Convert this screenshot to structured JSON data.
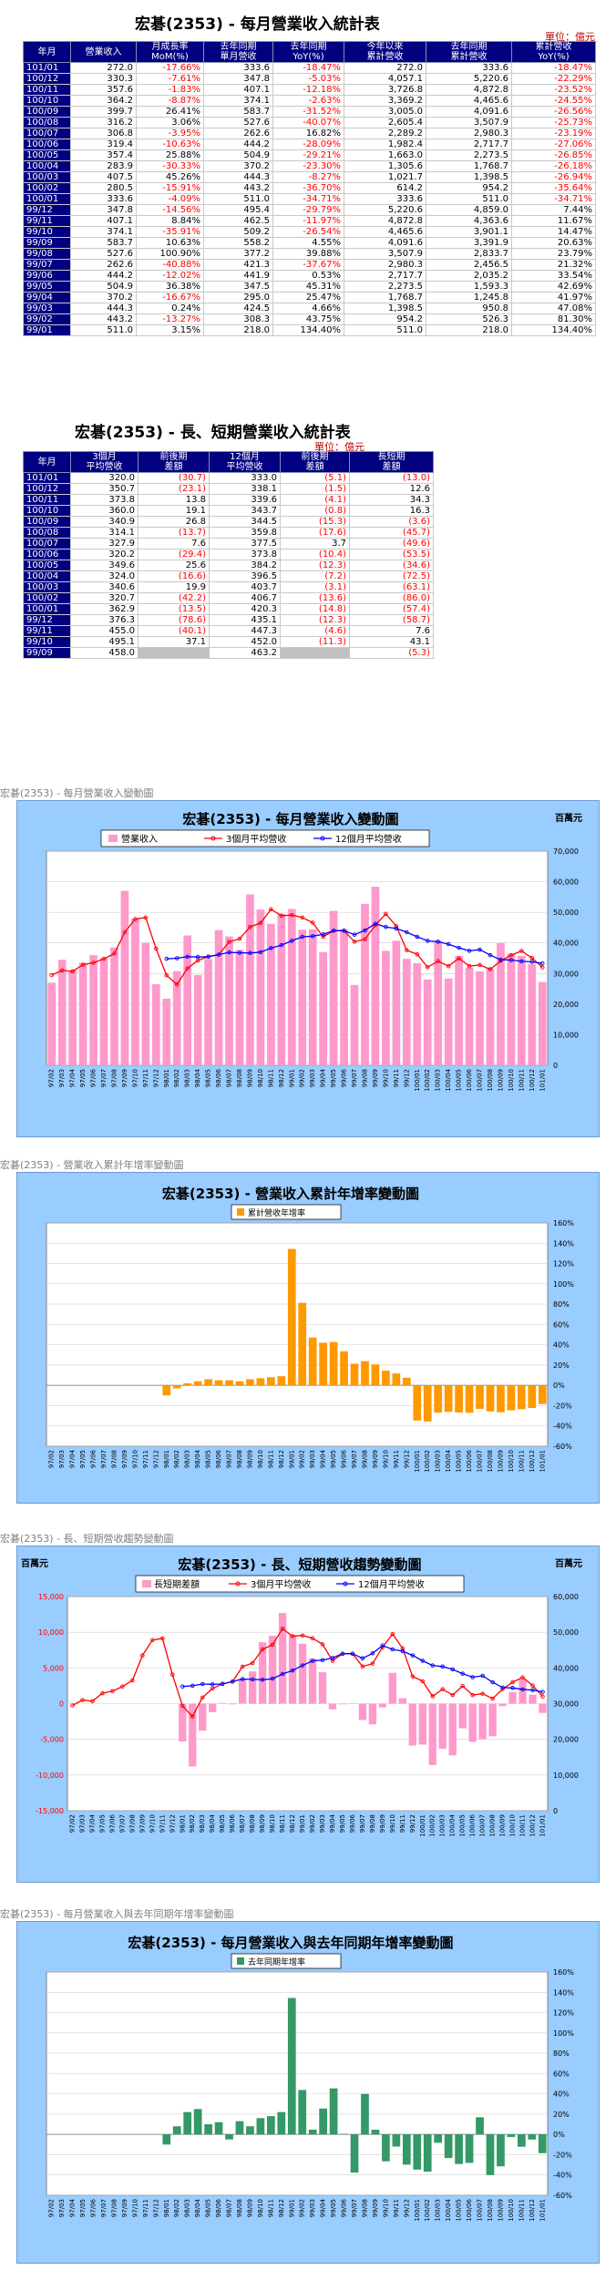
{
  "colors": {
    "header_bg": "#000080",
    "negative": "#ff0000",
    "panel_bg": "#99ccff",
    "bar_pink": "#ff99cc",
    "red_line": "#ff0000",
    "blue_line": "#0000ff",
    "orange_bar": "#ff9900",
    "green_bar": "#339966"
  },
  "t1": {
    "title": "宏碁(2353) - 每月營業收入統計表",
    "unit": "單位：億元",
    "headers": [
      "年月",
      "營業收入",
      "月成長率\nMoM(%)",
      "去年同期\n單月營收",
      "去年同期\nYoY(%)",
      "今年以來\n累計營收",
      "去年同期\n累計營收",
      "累計營收\nYoY(%)"
    ],
    "rows": [
      [
        "101/01",
        "272.0",
        "-17.66%",
        "333.6",
        "-18.47%",
        "272.0",
        "333.6",
        "-18.47%"
      ],
      [
        "100/12",
        "330.3",
        "-7.61%",
        "347.8",
        "-5.03%",
        "4,057.1",
        "5,220.6",
        "-22.29%"
      ],
      [
        "100/11",
        "357.6",
        "-1.83%",
        "407.1",
        "-12.18%",
        "3,726.8",
        "4,872.8",
        "-23.52%"
      ],
      [
        "100/10",
        "364.2",
        "-8.87%",
        "374.1",
        "-2.63%",
        "3,369.2",
        "4,465.6",
        "-24.55%"
      ],
      [
        "100/09",
        "399.7",
        "26.41%",
        "583.7",
        "-31.52%",
        "3,005.0",
        "4,091.6",
        "-26.56%"
      ],
      [
        "100/08",
        "316.2",
        "3.06%",
        "527.6",
        "-40.07%",
        "2,605.4",
        "3,507.9",
        "-25.73%"
      ],
      [
        "100/07",
        "306.8",
        "-3.95%",
        "262.6",
        "16.82%",
        "2,289.2",
        "2,980.3",
        "-23.19%"
      ],
      [
        "100/06",
        "319.4",
        "-10.63%",
        "444.2",
        "-28.09%",
        "1,982.4",
        "2,717.7",
        "-27.06%"
      ],
      [
        "100/05",
        "357.4",
        "25.88%",
        "504.9",
        "-29.21%",
        "1,663.0",
        "2,273.5",
        "-26.85%"
      ],
      [
        "100/04",
        "283.9",
        "-30.33%",
        "370.2",
        "-23.30%",
        "1,305.6",
        "1,768.7",
        "-26.18%"
      ],
      [
        "100/03",
        "407.5",
        "45.26%",
        "444.3",
        "-8.27%",
        "1,021.7",
        "1,398.5",
        "-26.94%"
      ],
      [
        "100/02",
        "280.5",
        "-15.91%",
        "443.2",
        "-36.70%",
        "614.2",
        "954.2",
        "-35.64%"
      ],
      [
        "100/01",
        "333.6",
        "-4.09%",
        "511.0",
        "-34.71%",
        "333.6",
        "511.0",
        "-34.71%"
      ],
      [
        "99/12",
        "347.8",
        "-14.56%",
        "495.4",
        "-29.79%",
        "5,220.6",
        "4,859.0",
        "7.44%"
      ],
      [
        "99/11",
        "407.1",
        "8.84%",
        "462.5",
        "-11.97%",
        "4,872.8",
        "4,363.6",
        "11.67%"
      ],
      [
        "99/10",
        "374.1",
        "-35.91%",
        "509.2",
        "-26.54%",
        "4,465.6",
        "3,901.1",
        "14.47%"
      ],
      [
        "99/09",
        "583.7",
        "10.63%",
        "558.2",
        "4.55%",
        "4,091.6",
        "3,391.9",
        "20.63%"
      ],
      [
        "99/08",
        "527.6",
        "100.90%",
        "377.2",
        "39.88%",
        "3,507.9",
        "2,833.7",
        "23.79%"
      ],
      [
        "99/07",
        "262.6",
        "-40.88%",
        "421.3",
        "-37.67%",
        "2,980.3",
        "2,456.5",
        "21.32%"
      ],
      [
        "99/06",
        "444.2",
        "-12.02%",
        "441.9",
        "0.53%",
        "2,717.7",
        "2,035.2",
        "33.54%"
      ],
      [
        "99/05",
        "504.9",
        "36.38%",
        "347.5",
        "45.31%",
        "2,273.5",
        "1,593.3",
        "42.69%"
      ],
      [
        "99/04",
        "370.2",
        "-16.67%",
        "295.0",
        "25.47%",
        "1,768.7",
        "1,245.8",
        "41.97%"
      ],
      [
        "99/03",
        "444.3",
        "0.24%",
        "424.5",
        "4.66%",
        "1,398.5",
        "950.8",
        "47.08%"
      ],
      [
        "99/02",
        "443.2",
        "-13.27%",
        "308.3",
        "43.75%",
        "954.2",
        "526.3",
        "81.30%"
      ],
      [
        "99/01",
        "511.0",
        "3.15%",
        "218.0",
        "134.40%",
        "511.0",
        "218.0",
        "134.40%"
      ]
    ]
  },
  "t2": {
    "title": "宏碁(2353) - 長、短期營業收入統計表",
    "unit": "單位：億元",
    "headers": [
      "年月",
      "3個月\n平均營收",
      "前後期\n差額",
      "12個月\n平均營收",
      "前後期\n差額",
      "長短期\n差額"
    ],
    "rows": [
      [
        "101/01",
        "320.0",
        "(30.7)",
        "333.0",
        "(5.1)",
        "(13.0)"
      ],
      [
        "100/12",
        "350.7",
        "(23.1)",
        "338.1",
        "(1.5)",
        "12.6"
      ],
      [
        "100/11",
        "373.8",
        "13.8",
        "339.6",
        "(4.1)",
        "34.3"
      ],
      [
        "100/10",
        "360.0",
        "19.1",
        "343.7",
        "(0.8)",
        "16.3"
      ],
      [
        "100/09",
        "340.9",
        "26.8",
        "344.5",
        "(15.3)",
        "(3.6)"
      ],
      [
        "100/08",
        "314.1",
        "(13.7)",
        "359.8",
        "(17.6)",
        "(45.7)"
      ],
      [
        "100/07",
        "327.9",
        "7.6",
        "377.5",
        "3.7",
        "(49.6)"
      ],
      [
        "100/06",
        "320.2",
        "(29.4)",
        "373.8",
        "(10.4)",
        "(53.5)"
      ],
      [
        "100/05",
        "349.6",
        "25.6",
        "384.2",
        "(12.3)",
        "(34.6)"
      ],
      [
        "100/04",
        "324.0",
        "(16.6)",
        "396.5",
        "(7.2)",
        "(72.5)"
      ],
      [
        "100/03",
        "340.6",
        "19.9",
        "403.7",
        "(3.1)",
        "(63.1)"
      ],
      [
        "100/02",
        "320.7",
        "(42.2)",
        "406.7",
        "(13.6)",
        "(86.0)"
      ],
      [
        "100/01",
        "362.9",
        "(13.5)",
        "420.3",
        "(14.8)",
        "(57.4)"
      ],
      [
        "99/12",
        "376.3",
        "(78.6)",
        "435.1",
        "(12.3)",
        "(58.7)"
      ],
      [
        "99/11",
        "455.0",
        "(40.1)",
        "447.3",
        "(4.6)",
        "7.6"
      ],
      [
        "99/10",
        "495.1",
        "37.1",
        "452.0",
        "(11.3)",
        "43.1"
      ],
      [
        "99/09",
        "458.0",
        "",
        "463.2",
        "",
        "(5.3)"
      ]
    ]
  },
  "c1": {
    "caption": "宏碁(2353) - 每月營業收入變動圖",
    "title": "宏碁(2353) - 每月營業收入變動圖",
    "unit": "百萬元",
    "legend": [
      "營業收入",
      "3個月平均營收",
      "12個月平均營收"
    ]
  },
  "c2": {
    "caption": "宏碁(2353) -   營業收入累計年增率變動圖",
    "title": "宏碁(2353) -  營業收入累計年增率變動圖",
    "legend": [
      "累計營收年增率"
    ]
  },
  "c3": {
    "caption": "宏碁(2353) -  長、短期營收趨勢變動圖",
    "title": "宏碁(2353) - 長、短期營收趨勢變動圖",
    "unit_left": "百萬元",
    "unit_right": "百萬元",
    "legend": [
      "長短期差額",
      "3個月平均營收",
      "12個月平均營收"
    ]
  },
  "c4": {
    "caption": "宏碁(2353) -  每月營業收入與去年同期年增率變動圖",
    "title": "宏碁(2353) - 每月營業收入與去年同期年增率變動圖",
    "legend": [
      "去年同期年增率"
    ]
  },
  "chart_data": [
    {
      "type": "bar",
      "name": "c1",
      "categories": [
        "97/02",
        "97/03",
        "97/04",
        "97/05",
        "97/06",
        "97/07",
        "97/08",
        "97/09",
        "97/10",
        "97/11",
        "97/12",
        "98/01",
        "98/02",
        "98/03",
        "98/04",
        "98/05",
        "98/06",
        "98/07",
        "98/08",
        "98/09",
        "98/10",
        "98/11",
        "98/12",
        "99/01",
        "99/02",
        "99/03",
        "99/04",
        "99/05",
        "99/06",
        "99/07",
        "99/08",
        "99/09",
        "99/10",
        "99/11",
        "99/12",
        "100/01",
        "100/02",
        "100/03",
        "100/04",
        "100/05",
        "100/06",
        "100/07",
        "100/08",
        "100/09",
        "100/10",
        "100/11",
        "100/12",
        "101/01"
      ],
      "series": [
        {
          "name": "營業收入",
          "kind": "bar",
          "values": [
            27000,
            34500,
            31000,
            33500,
            36000,
            35000,
            38500,
            57000,
            48000,
            40000,
            26500,
            21800,
            30800,
            42450,
            29500,
            34750,
            44190,
            42130,
            37720,
            55820,
            50920,
            46250,
            49540,
            51100,
            44320,
            44430,
            37020,
            50490,
            44420,
            26260,
            52760,
            58370,
            37410,
            40710,
            34780,
            33360,
            28050,
            40750,
            28390,
            35740,
            31940,
            30680,
            31620,
            39970,
            36420,
            35760,
            33030,
            27200
          ]
        },
        {
          "name": "3個月平均營收",
          "kind": "line",
          "values": [
            29500,
            31000,
            30700,
            32900,
            33500,
            34800,
            36500,
            43500,
            47800,
            48300,
            38100,
            29400,
            26400,
            31700,
            34250,
            35570,
            36150,
            40360,
            41350,
            45220,
            46490,
            50990,
            48900,
            49100,
            48320,
            46620,
            42000,
            43980,
            43980,
            40390,
            41210,
            45800,
            49510,
            45500,
            37630,
            36280,
            32060,
            34060,
            32400,
            34960,
            32400,
            32790,
            31410,
            34090,
            36000,
            37380,
            35070,
            32000
          ]
        },
        {
          "name": "12個月平均營收",
          "kind": "line",
          "values": [
            null,
            null,
            null,
            null,
            null,
            null,
            null,
            null,
            null,
            null,
            null,
            34800,
            35000,
            35500,
            35400,
            35500,
            36200,
            36900,
            36800,
            36700,
            37000,
            38300,
            39300,
            40700,
            42000,
            42200,
            42800,
            44000,
            44000,
            42700,
            44100,
            46300,
            45200,
            44700,
            43500,
            42000,
            40700,
            40400,
            39600,
            38400,
            37400,
            37800,
            36000,
            34500,
            34400,
            34000,
            33800,
            33300
          ]
        }
      ],
      "ylim": [
        0,
        70000
      ],
      "ylabel": "百萬元"
    },
    {
      "type": "bar",
      "name": "c2",
      "categories": [
        "97/02",
        "97/03",
        "97/04",
        "97/05",
        "97/06",
        "97/07",
        "97/08",
        "97/09",
        "97/10",
        "97/11",
        "97/12",
        "98/01",
        "98/02",
        "98/03",
        "98/04",
        "98/05",
        "98/06",
        "98/07",
        "98/08",
        "98/09",
        "98/10",
        "98/11",
        "98/12",
        "99/01",
        "99/02",
        "99/03",
        "99/04",
        "99/05",
        "99/06",
        "99/07",
        "99/08",
        "99/09",
        "99/10",
        "99/11",
        "99/12",
        "100/01",
        "100/02",
        "100/03",
        "100/04",
        "100/05",
        "100/06",
        "100/07",
        "100/08",
        "100/09",
        "100/10",
        "100/11",
        "100/12",
        "101/01"
      ],
      "series": [
        {
          "name": "累計營收年增率",
          "values": [
            null,
            null,
            null,
            null,
            null,
            null,
            null,
            null,
            null,
            null,
            null,
            -10,
            -3,
            2,
            4,
            6,
            5,
            5,
            4,
            6,
            7,
            8,
            9,
            134.4,
            81.3,
            47.08,
            41.97,
            42.69,
            33.54,
            21.32,
            23.79,
            20.63,
            14.47,
            11.67,
            7.44,
            -34.71,
            -35.64,
            -26.94,
            -26.18,
            -26.85,
            -27.06,
            -23.19,
            -25.73,
            -26.56,
            -24.55,
            -23.52,
            -22.29,
            -18.47
          ]
        }
      ],
      "ylim": [
        -60,
        160
      ],
      "yunit": "%"
    },
    {
      "type": "bar",
      "name": "c3",
      "categories": [
        "97/02",
        "97/03",
        "97/04",
        "97/05",
        "97/06",
        "97/07",
        "97/08",
        "97/09",
        "97/10",
        "97/11",
        "97/12",
        "98/01",
        "98/02",
        "98/03",
        "98/04",
        "98/05",
        "98/06",
        "98/07",
        "98/08",
        "98/09",
        "98/10",
        "98/11",
        "98/12",
        "99/01",
        "99/02",
        "99/03",
        "99/04",
        "99/05",
        "99/06",
        "99/07",
        "99/08",
        "99/09",
        "99/10",
        "99/11",
        "99/12",
        "100/01",
        "100/02",
        "100/03",
        "100/04",
        "100/05",
        "100/06",
        "100/07",
        "100/08",
        "100/09",
        "100/10",
        "100/11",
        "100/12",
        "101/01"
      ],
      "series": [
        {
          "name": "長短期差額",
          "axis": "left",
          "values": [
            null,
            null,
            null,
            null,
            null,
            null,
            null,
            null,
            null,
            null,
            null,
            -5300,
            -8800,
            -3800,
            -1200,
            100,
            -100,
            3500,
            4500,
            8600,
            9500,
            12700,
            9600,
            8400,
            6300,
            4400,
            -800,
            -100,
            -30,
            -2300,
            -2900,
            -530,
            4310,
            760,
            -5870,
            -5740,
            -8600,
            -6310,
            -7250,
            -3460,
            -5350,
            -4960,
            -4570,
            -360,
            1630,
            3430,
            1260,
            -1300
          ]
        },
        {
          "name": "3個月平均營收",
          "axis": "right",
          "values": [
            29500,
            31000,
            30700,
            32900,
            33500,
            34800,
            36500,
            43500,
            47800,
            48300,
            38100,
            29400,
            26400,
            31700,
            34250,
            35570,
            36150,
            40360,
            41350,
            45220,
            46490,
            50990,
            48900,
            49100,
            48320,
            46620,
            42000,
            43980,
            43980,
            40390,
            41210,
            45800,
            49510,
            45500,
            37630,
            36280,
            32060,
            34060,
            32400,
            34960,
            32400,
            32790,
            31410,
            34090,
            36000,
            37380,
            35070,
            32000
          ]
        },
        {
          "name": "12個月平均營收",
          "axis": "right",
          "values": [
            null,
            null,
            null,
            null,
            null,
            null,
            null,
            null,
            null,
            null,
            null,
            34800,
            35000,
            35500,
            35400,
            35500,
            36200,
            36900,
            36800,
            36700,
            37000,
            38300,
            39300,
            40700,
            42000,
            42200,
            42800,
            44000,
            44000,
            42700,
            44100,
            46300,
            45200,
            44700,
            43500,
            42000,
            40700,
            40400,
            39600,
            38400,
            37400,
            37800,
            36000,
            34500,
            34400,
            34000,
            33800,
            33300
          ]
        }
      ],
      "ylim_left": [
        -15000,
        15000
      ],
      "ylim_right": [
        0,
        60000
      ]
    },
    {
      "type": "bar",
      "name": "c4",
      "categories": [
        "97/02",
        "97/03",
        "97/04",
        "97/05",
        "97/06",
        "97/07",
        "97/08",
        "97/09",
        "97/10",
        "97/11",
        "97/12",
        "98/01",
        "98/02",
        "98/03",
        "98/04",
        "98/05",
        "98/06",
        "98/07",
        "98/08",
        "98/09",
        "98/10",
        "98/11",
        "98/12",
        "99/01",
        "99/02",
        "99/03",
        "99/04",
        "99/05",
        "99/06",
        "99/07",
        "99/08",
        "99/09",
        "99/10",
        "99/11",
        "99/12",
        "100/01",
        "100/02",
        "100/03",
        "100/04",
        "100/05",
        "100/06",
        "100/07",
        "100/08",
        "100/09",
        "100/10",
        "100/11",
        "100/12",
        "101/01"
      ],
      "series": [
        {
          "name": "去年同期年增率",
          "values": [
            null,
            null,
            null,
            null,
            null,
            null,
            null,
            null,
            null,
            null,
            null,
            -10,
            8,
            22,
            25,
            10,
            12,
            -5,
            13,
            8,
            16,
            18,
            22,
            134.4,
            43.75,
            4.66,
            25.47,
            45.31,
            0.53,
            -37.67,
            39.88,
            4.55,
            -26.54,
            -11.97,
            -29.79,
            -34.71,
            -36.7,
            -8.27,
            -23.3,
            -29.21,
            -28.09,
            16.82,
            -40.07,
            -31.52,
            -2.63,
            -12.18,
            -5.03,
            -18.47
          ]
        }
      ],
      "ylim": [
        -60,
        160
      ],
      "yunit": "%"
    }
  ]
}
